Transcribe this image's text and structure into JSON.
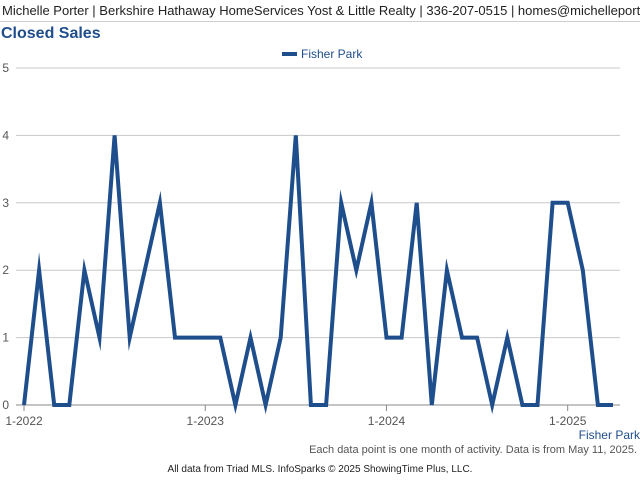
{
  "header": {
    "agent_line": "Michelle Porter | Berkshire Hathaway HomeServices Yost & Little Realty | 336-207-0515 | homes@michelleporter.com"
  },
  "chart_data": {
    "type": "line",
    "title": "Closed Sales",
    "x_ticks": [
      "1-2022",
      "1-2023",
      "1-2024",
      "1-2025"
    ],
    "y_ticks": [
      "0",
      "1",
      "2",
      "3",
      "4",
      "5"
    ],
    "ylim": [
      0,
      5
    ],
    "grid": true,
    "legend_position": "top-center",
    "x_axis_series_label": "Fisher Park",
    "series": [
      {
        "name": "Fisher Park",
        "color": "#1f4e8c",
        "x": [
          "2022-01",
          "2022-02",
          "2022-03",
          "2022-04",
          "2022-05",
          "2022-06",
          "2022-07",
          "2022-08",
          "2022-09",
          "2022-10",
          "2022-11",
          "2022-12",
          "2023-01",
          "2023-02",
          "2023-03",
          "2023-04",
          "2023-05",
          "2023-06",
          "2023-07",
          "2023-08",
          "2023-09",
          "2023-10",
          "2023-11",
          "2023-12",
          "2024-01",
          "2024-02",
          "2024-03",
          "2024-04",
          "2024-05",
          "2024-06",
          "2024-07",
          "2024-08",
          "2024-09",
          "2024-10",
          "2024-11",
          "2024-12",
          "2025-01",
          "2025-02",
          "2025-03",
          "2025-04"
        ],
        "values": [
          0,
          2,
          0,
          0,
          2,
          1,
          4,
          1,
          2,
          3,
          1,
          1,
          1,
          1,
          0,
          1,
          0,
          1,
          4,
          0,
          0,
          3,
          2,
          3,
          1,
          1,
          3,
          0,
          2,
          1,
          1,
          0,
          1,
          0,
          0,
          3,
          3,
          2,
          0,
          0
        ]
      }
    ]
  },
  "footer": {
    "note": "Each data point is one month of activity. Data is from May 11, 2025.",
    "copyright": "All data from Triad MLS. InfoSparks © 2025 ShowingTime Plus, LLC."
  }
}
